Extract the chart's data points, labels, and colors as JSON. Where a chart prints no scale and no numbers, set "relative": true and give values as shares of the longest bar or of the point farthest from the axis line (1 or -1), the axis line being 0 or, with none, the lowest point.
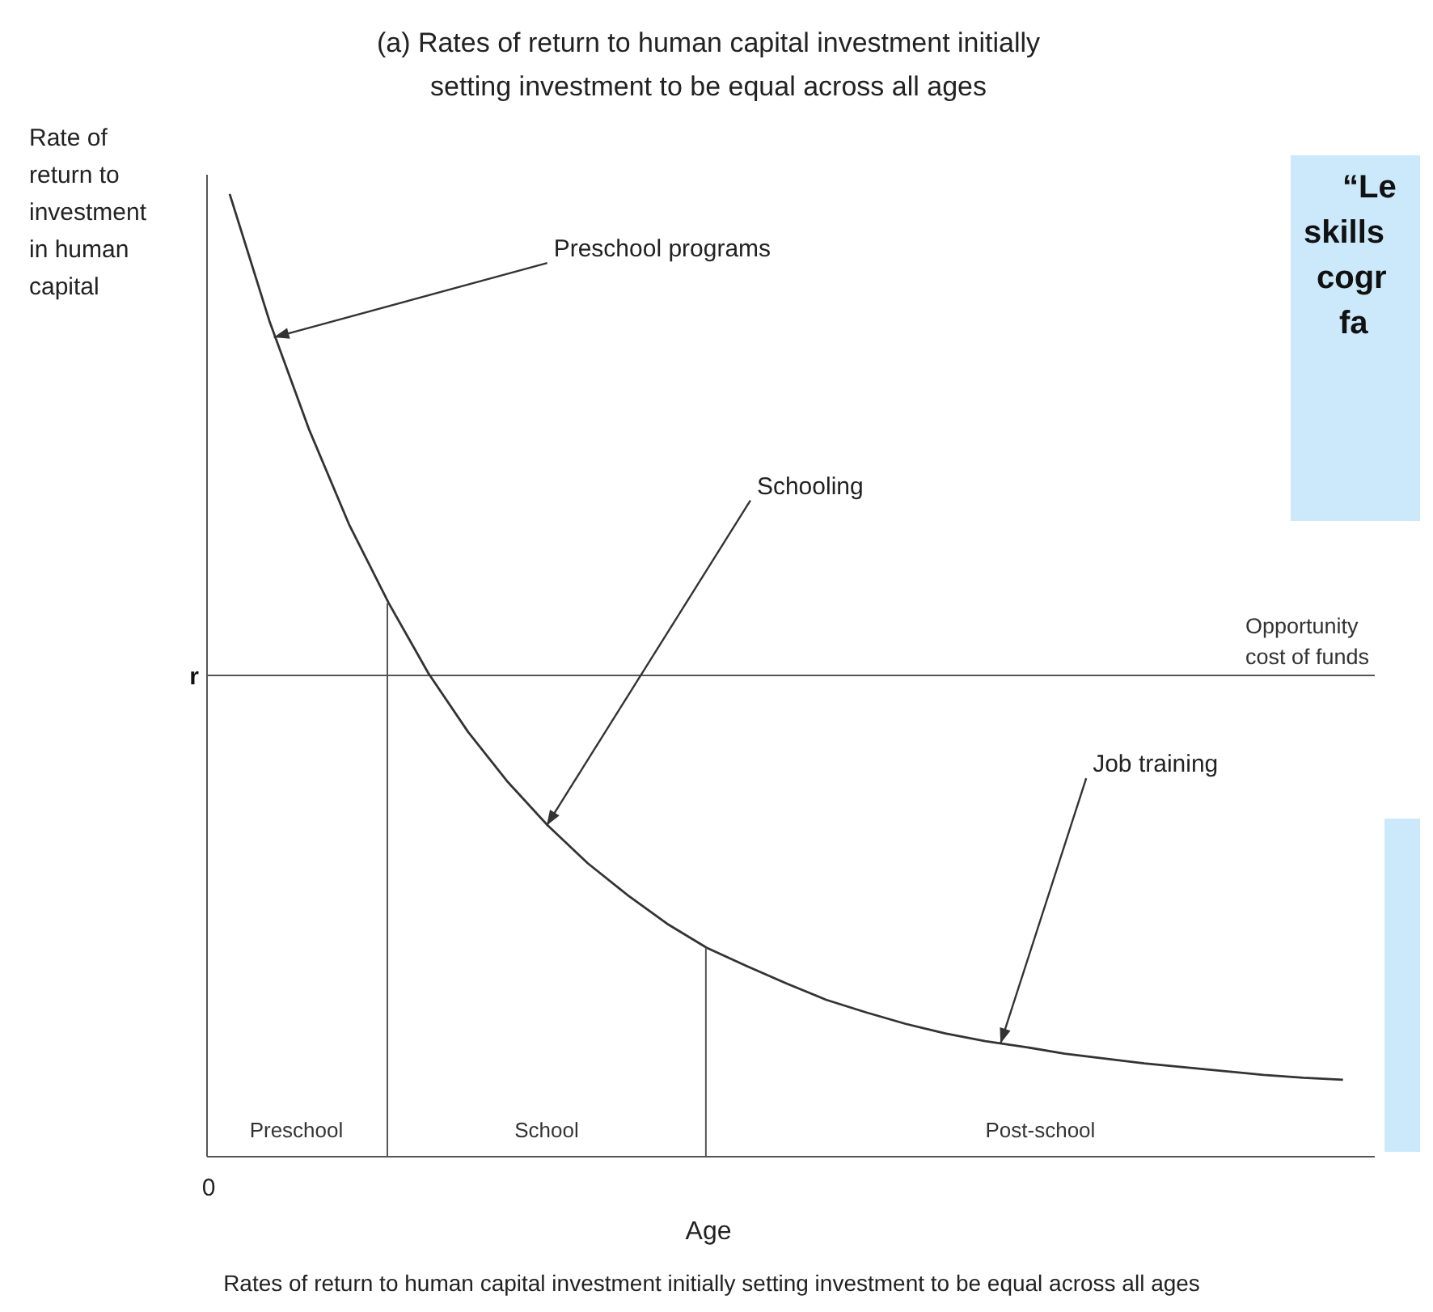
{
  "chart_data": {
    "type": "line",
    "relative": true,
    "title": "(a) Rates of return to human capital investment initially setting investment to be equal across all ages",
    "xlabel": "Age",
    "ylabel": "Rate of return to investment in human capital",
    "categories": [
      null,
      null,
      null,
      null,
      null,
      null,
      null,
      null,
      null,
      null,
      null,
      null,
      null,
      null,
      null,
      null,
      null,
      null,
      null,
      null,
      null,
      null,
      null,
      null,
      null,
      null,
      null,
      null,
      null
    ],
    "series": [
      {
        "color": "#333333",
        "values": [
          1.0,
          0.868,
          0.755,
          0.657,
          0.575,
          0.502,
          0.441,
          0.389,
          0.344,
          0.305,
          0.272,
          0.242,
          0.217,
          0.198,
          0.18,
          0.163,
          0.15,
          0.138,
          0.128,
          0.12,
          0.114,
          0.107,
          0.102,
          0.097,
          0.093,
          0.089,
          0.085,
          0.082,
          0.08
        ]
      }
    ],
    "marker": "none",
    "ref_lines": [
      {
        "axis": "y",
        "value": 0.5,
        "label": "r"
      }
    ],
    "annotations": [
      "Opportunity cost of funds",
      "Rates of return to human capital investment initially setting investment to be equal across all ages",
      "“Le skills cogr fa",
      "0",
      "Preschool",
      "School",
      "Post-school",
      "Preschool programs",
      "Schooling",
      "Job training"
    ]
  }
}
